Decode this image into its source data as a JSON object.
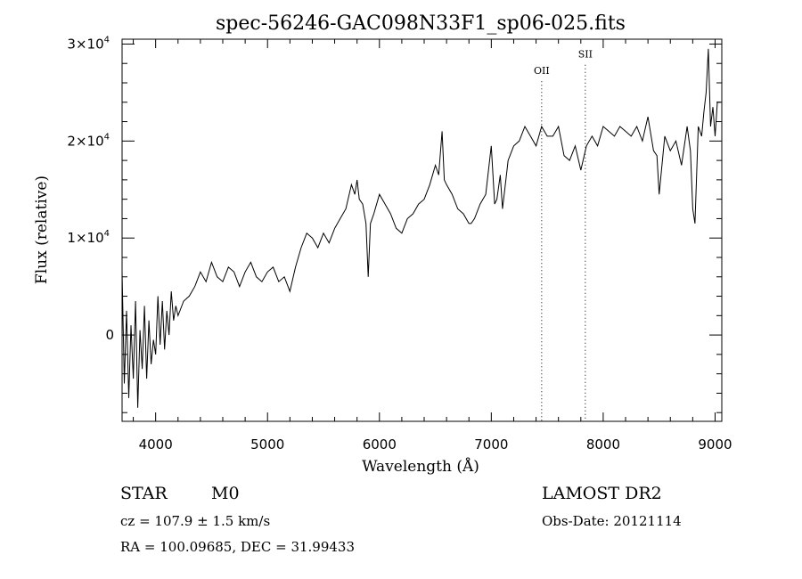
{
  "chart_data": {
    "type": "line",
    "title": "spec-56246-GAC098N33F1_sp06-025.fits",
    "xlabel": "Wavelength (Å)",
    "ylabel": "Flux (relative)",
    "xlim": [
      3700,
      9060
    ],
    "ylim": [
      -8900,
      30500
    ],
    "x_ticks": [
      4000,
      5000,
      6000,
      7000,
      8000,
      9000
    ],
    "y_ticks": [
      {
        "value": 0,
        "mantissa": "0",
        "exponent": ""
      },
      {
        "value": 10000,
        "mantissa": "1×10",
        "exponent": "4"
      },
      {
        "value": 20000,
        "mantissa": "2×10",
        "exponent": "4"
      },
      {
        "value": 30000,
        "mantissa": "3×10",
        "exponent": "4"
      }
    ],
    "grid": false,
    "line_color": "#000000",
    "annotations": [
      {
        "label": "OII",
        "x": 7450,
        "label_y": 26900
      },
      {
        "label": "SII",
        "x": 7840,
        "label_y": 28600
      }
    ],
    "series": [
      {
        "x": [
          3700,
          3720,
          3740,
          3760,
          3780,
          3800,
          3820,
          3840,
          3860,
          3880,
          3900,
          3920,
          3940,
          3960,
          3980,
          4000,
          4020,
          4040,
          4060,
          4080,
          4100,
          4120,
          4140,
          4160,
          4180,
          4200,
          4250,
          4300,
          4350,
          4400,
          4450,
          4500,
          4550,
          4600,
          4650,
          4700,
          4750,
          4800,
          4850,
          4900,
          4950,
          5000,
          5050,
          5100,
          5150,
          5200,
          5250,
          5300,
          5350,
          5400,
          5450,
          5500,
          5550,
          5600,
          5650,
          5700,
          5750,
          5780,
          5800,
          5820,
          5850,
          5880,
          5900,
          5920,
          5950,
          6000,
          6050,
          6100,
          6150,
          6200,
          6250,
          6300,
          6350,
          6400,
          6450,
          6500,
          6530,
          6560,
          6580,
          6600,
          6650,
          6700,
          6750,
          6800,
          6820,
          6850,
          6900,
          6950,
          7000,
          7030,
          7050,
          7080,
          7100,
          7130,
          7150,
          7200,
          7250,
          7300,
          7350,
          7400,
          7450,
          7500,
          7550,
          7600,
          7650,
          7700,
          7750,
          7800,
          7850,
          7900,
          7950,
          8000,
          8050,
          8100,
          8150,
          8200,
          8250,
          8300,
          8350,
          8400,
          8450,
          8480,
          8500,
          8550,
          8600,
          8650,
          8700,
          8750,
          8780,
          8800,
          8820,
          8850,
          8880,
          8900,
          8920,
          8940,
          8960,
          8980,
          9000,
          9020,
          9050
        ],
        "y": [
          6500,
          -5000,
          2500,
          -6500,
          1000,
          -4500,
          3500,
          -7500,
          500,
          -3500,
          3000,
          -4500,
          1500,
          -3000,
          -500,
          -2000,
          4000,
          -1000,
          3500,
          -1500,
          2500,
          0,
          4500,
          1500,
          3000,
          2000,
          3500,
          4000,
          5000,
          6500,
          5500,
          7500,
          6000,
          5500,
          7000,
          6500,
          5000,
          6500,
          7500,
          6000,
          5500,
          6500,
          7000,
          5500,
          6000,
          4500,
          7000,
          9000,
          10500,
          10000,
          9000,
          10500,
          9500,
          11000,
          12000,
          13000,
          15500,
          14500,
          16000,
          14000,
          13500,
          11500,
          6000,
          11500,
          12500,
          14500,
          13500,
          12500,
          11000,
          10500,
          12000,
          12500,
          13500,
          14000,
          15500,
          17500,
          16500,
          21000,
          16000,
          15500,
          14500,
          13000,
          12500,
          11500,
          11500,
          12000,
          13500,
          14500,
          19500,
          13500,
          14000,
          16500,
          13000,
          16000,
          18000,
          19500,
          20000,
          21500,
          20500,
          19500,
          21500,
          20500,
          20500,
          21500,
          18500,
          18000,
          19500,
          17000,
          19500,
          20500,
          19500,
          21500,
          21000,
          20500,
          21500,
          21000,
          20500,
          21500,
          20000,
          22500,
          19000,
          18500,
          14500,
          20500,
          19000,
          20000,
          17500,
          21500,
          19000,
          13000,
          11500,
          21500,
          20500,
          23000,
          25000,
          29500,
          21500,
          23500,
          20500,
          24000,
          24000
        ]
      }
    ]
  },
  "footer": {
    "object_class": "STAR",
    "subclass": "M0",
    "redshift": "cz = 107.9 ± 1.5 km/s",
    "coords": "RA = 100.09685, DEC =  31.99433",
    "survey": "LAMOST DR2",
    "obs_date": "Obs-Date: 20121114"
  }
}
